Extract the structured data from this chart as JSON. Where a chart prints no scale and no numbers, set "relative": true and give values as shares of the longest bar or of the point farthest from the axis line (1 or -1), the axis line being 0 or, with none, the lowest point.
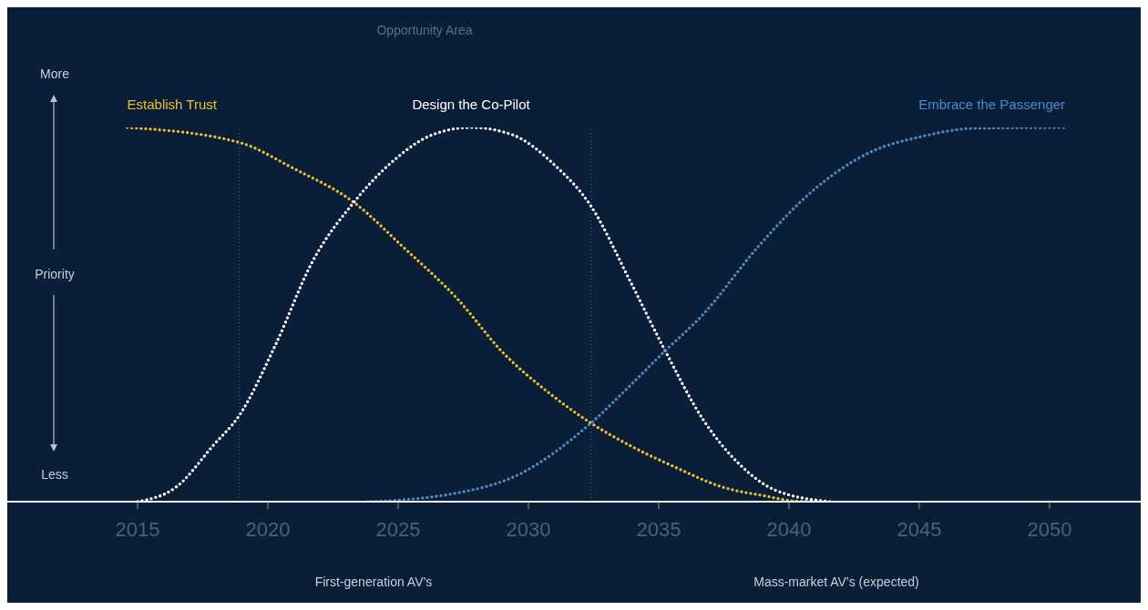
{
  "chart_data": {
    "type": "line",
    "relative": true,
    "ylabel": "Priority",
    "x": [
      2014.6,
      2018.9,
      2021.0,
      2023.3,
      2025.2,
      2027.3,
      2029.0,
      2030.8,
      2032.4,
      2033.9,
      2035.7,
      2037.4,
      2039.1,
      2040.2,
      2041.2
    ],
    "series": [
      {
        "name": "Establish Trust",
        "color": "#e8c12e",
        "values": [
          1.0,
          0.96,
          0.89,
          0.8,
          0.68,
          0.54,
          0.4,
          0.29,
          0.21,
          0.15,
          0.09,
          0.04,
          0.015,
          0.002,
          0
        ]
      },
      {
        "name": "Design the Co-Pilot",
        "color": "#ffffff",
        "x": [
          2015,
          2016.5,
          2017.9,
          2018.9,
          2020.3,
          2021.7,
          2023.3,
          2024.8,
          2026.3,
          2027.8,
          2029.4,
          2031.0,
          2032.4,
          2033.9,
          2035.2,
          2036.7,
          2038.1,
          2039.5,
          2041.6
        ],
        "values": [
          0,
          0.04,
          0.15,
          0.23,
          0.42,
          0.64,
          0.8,
          0.91,
          0.98,
          1.0,
          0.98,
          0.9,
          0.79,
          0.59,
          0.41,
          0.22,
          0.1,
          0.03,
          0
        ]
      },
      {
        "name": "Embrace the Passenger",
        "color": "#4a8bc8",
        "x": [
          2023.8,
          2027.0,
          2029.7,
          2032.4,
          2033.9,
          2035.2,
          2036.7,
          2038.8,
          2040.9,
          2043.0,
          2045.1,
          2047.2,
          2050.6
        ],
        "values": [
          0,
          0.02,
          0.075,
          0.21,
          0.31,
          0.4,
          0.5,
          0.68,
          0.83,
          0.93,
          0.976,
          0.998,
          1.0
        ]
      }
    ],
    "xlim": [
      2010,
      2053.5
    ],
    "xticks": [
      2015,
      2020,
      2025,
      2030,
      2035,
      2040,
      2045,
      2050
    ],
    "ref_lines": [
      {
        "axis": "x",
        "value": 2018.9,
        "color": "#2a5a90",
        "line_style": "dotted"
      },
      {
        "axis": "x",
        "value": 2032.4,
        "color": "#2a5a90",
        "line_style": "dotted"
      }
    ],
    "annotations": [
      "More",
      "Less",
      "Opportunity Area",
      "First-generation AV’s",
      "Mass-market AV’s (expected)"
    ],
    "marker": "none",
    "line_style": "dotted"
  }
}
